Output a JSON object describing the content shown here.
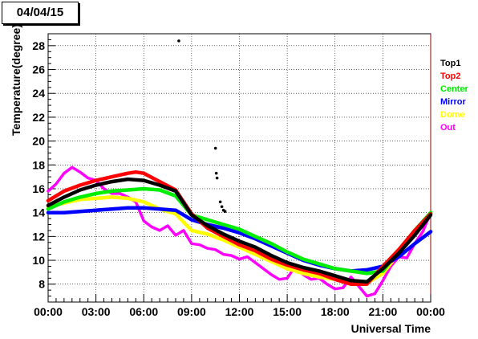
{
  "header": {
    "date": "04/04/15"
  },
  "chart_data": {
    "type": "scatter",
    "title": "04/04/15",
    "xlabel": "Universal Time",
    "ylabel": "Temperature(degree)",
    "xlim": [
      0,
      24
    ],
    "ylim": [
      6.5,
      29
    ],
    "x_unit": "hours UT",
    "x_ticks": [
      {
        "value": 0,
        "label": "00:00"
      },
      {
        "value": 3,
        "label": "03:00"
      },
      {
        "value": 6,
        "label": "06:00"
      },
      {
        "value": 9,
        "label": "09:00"
      },
      {
        "value": 12,
        "label": "12:00"
      },
      {
        "value": 15,
        "label": "15:00"
      },
      {
        "value": 18,
        "label": "18:00"
      },
      {
        "value": 21,
        "label": "21:00"
      },
      {
        "value": 24,
        "label": "00:00"
      }
    ],
    "y_ticks": [
      8,
      10,
      12,
      14,
      16,
      18,
      20,
      22,
      24,
      26,
      28
    ],
    "grid": true,
    "legend_position": "right",
    "series": [
      {
        "name": "Top1",
        "color": "#000000",
        "x": [
          0,
          1,
          2,
          3,
          4,
          5,
          6,
          7,
          8,
          9,
          10,
          11,
          12,
          13,
          14,
          15,
          16,
          17,
          18,
          19,
          20,
          21,
          22,
          23,
          24
        ],
        "y": [
          14.6,
          15.3,
          15.9,
          16.3,
          16.6,
          16.8,
          16.7,
          16.3,
          15.8,
          13.8,
          12.9,
          12.2,
          11.6,
          11.1,
          10.4,
          9.8,
          9.4,
          9.1,
          8.7,
          8.3,
          8.2,
          9.3,
          10.6,
          12.1,
          13.8
        ],
        "outliers": [
          [
            8.2,
            28.4
          ],
          [
            10.5,
            19.4
          ],
          [
            10.55,
            17.3
          ],
          [
            10.6,
            16.9
          ],
          [
            10.8,
            14.9
          ],
          [
            10.9,
            14.5
          ],
          [
            11.0,
            14.2
          ],
          [
            11.1,
            14.1
          ],
          [
            10.7,
            12.4
          ]
        ]
      },
      {
        "name": "Top2",
        "color": "#ff0000",
        "x": [
          0,
          1,
          2,
          3,
          4,
          5,
          5.5,
          6,
          7,
          8,
          9,
          10,
          11,
          12,
          13,
          14,
          15,
          16,
          17,
          18,
          19,
          20,
          21,
          22,
          23,
          24
        ],
        "y": [
          15.0,
          15.8,
          16.3,
          16.7,
          17.0,
          17.3,
          17.4,
          17.3,
          16.6,
          15.9,
          13.9,
          12.7,
          12.0,
          11.3,
          10.8,
          10.1,
          9.6,
          9.2,
          8.9,
          8.4,
          8.0,
          8.0,
          9.5,
          10.9,
          12.5,
          13.9
        ]
      },
      {
        "name": "Center",
        "color": "#00ee00",
        "x": [
          0,
          1,
          2,
          3,
          4,
          5,
          6,
          7,
          8,
          9,
          10,
          11,
          12,
          13,
          14,
          15,
          16,
          17,
          18,
          19,
          20,
          21,
          22,
          23,
          24
        ],
        "y": [
          14.3,
          14.9,
          15.3,
          15.6,
          15.8,
          15.9,
          16.0,
          15.9,
          15.4,
          13.8,
          13.4,
          13.0,
          12.6,
          12.0,
          11.4,
          10.7,
          10.1,
          9.7,
          9.3,
          9.1,
          8.9,
          9.1,
          10.8,
          12.5,
          14.0
        ]
      },
      {
        "name": "Mirror",
        "color": "#0000ff",
        "x": [
          0,
          1,
          2,
          3,
          4,
          5,
          6,
          7,
          8,
          9,
          10,
          11,
          12,
          13,
          14,
          15,
          16,
          17,
          18,
          19,
          20,
          21,
          22,
          23,
          24
        ],
        "y": [
          14.0,
          14.0,
          14.1,
          14.2,
          14.3,
          14.4,
          14.4,
          14.3,
          14.2,
          13.4,
          13.0,
          12.7,
          12.3,
          11.8,
          11.2,
          10.6,
          10.0,
          9.6,
          9.3,
          9.1,
          9.2,
          9.5,
          10.3,
          11.4,
          12.4
        ]
      },
      {
        "name": "Dome",
        "color": "#ffff00",
        "x": [
          0,
          1,
          2,
          3,
          4,
          5,
          6,
          7,
          8,
          9,
          10,
          11,
          12,
          13,
          14,
          15,
          16,
          17,
          18,
          19,
          20,
          21,
          22,
          23,
          24
        ],
        "y": [
          14.5,
          14.8,
          15.1,
          15.2,
          15.3,
          15.2,
          14.9,
          14.3,
          13.9,
          12.5,
          12.2,
          11.7,
          11.1,
          10.5,
          9.9,
          9.3,
          8.9,
          8.6,
          8.4,
          8.2,
          8.1,
          8.9,
          10.6,
          12.4,
          14.0
        ]
      },
      {
        "name": "Out",
        "color": "#ff00ff",
        "x": [
          0,
          0.5,
          1,
          1.5,
          2,
          2.5,
          3,
          3.5,
          4,
          4.5,
          5,
          5.5,
          6,
          6.5,
          7,
          7.5,
          8,
          8.5,
          9,
          9.5,
          10,
          10.5,
          11,
          11.5,
          12,
          12.5,
          13,
          13.5,
          14,
          14.5,
          15,
          15.5,
          16,
          16.5,
          17,
          17.5,
          18,
          18.5,
          19,
          19.5,
          20,
          20.5,
          21,
          21.5,
          22,
          22.5,
          23,
          23.5,
          24
        ],
        "y": [
          15.8,
          16.4,
          17.3,
          17.8,
          17.4,
          16.9,
          16.7,
          16.0,
          15.6,
          15.6,
          15.3,
          14.9,
          13.3,
          12.8,
          12.5,
          12.9,
          12.1,
          12.5,
          11.4,
          11.3,
          11.0,
          10.9,
          10.5,
          10.4,
          10.1,
          10.3,
          9.8,
          9.3,
          8.8,
          8.4,
          8.5,
          9.5,
          8.8,
          8.4,
          8.5,
          8.0,
          7.6,
          7.7,
          8.6,
          7.8,
          7.0,
          7.2,
          8.3,
          9.5,
          10.3,
          10.2,
          11.4,
          12.4,
          14.0
        ]
      }
    ]
  }
}
